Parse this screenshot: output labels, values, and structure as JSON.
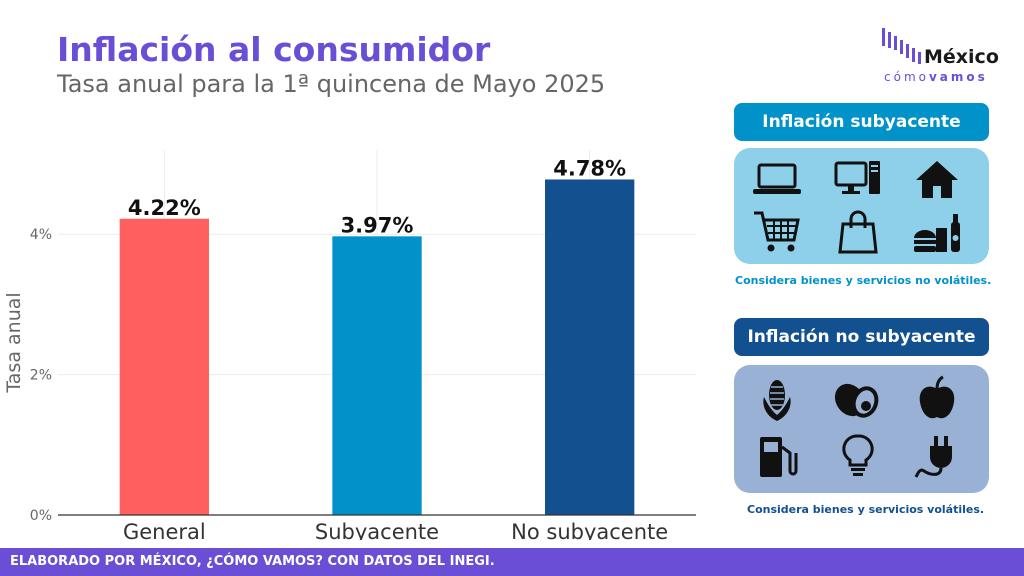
{
  "header": {
    "title": "Inflación al consumidor",
    "subtitle": "Tasa anual para la 1ª quincena de Mayo 2025"
  },
  "logo": {
    "word": "México",
    "tagline_light": "cómo",
    "tagline_bold": "vamos"
  },
  "chart_data": {
    "type": "bar",
    "categories": [
      "General",
      "Subyacente",
      "No subyacente"
    ],
    "values": [
      4.22,
      3.97,
      4.78
    ],
    "value_labels": [
      "4.22%",
      "3.97%",
      "4.78%"
    ],
    "colors": [
      "#ff5f5f",
      "#0092c8",
      "#12508f"
    ],
    "ylabel": "Tasa anual",
    "ylim": [
      0,
      5.2
    ],
    "yticks": [
      0,
      2,
      4
    ],
    "ytick_labels": [
      "0%",
      "2%",
      "4%"
    ],
    "grid": true
  },
  "panels": {
    "core": {
      "title": "Inflación subyacente",
      "note": "Considera bienes y servicios no volátiles.",
      "accent": "#0092c8",
      "box_color": "#8ed0ea",
      "icons": [
        "laptop-icon",
        "desktop-computer-icon",
        "house-icon",
        "shopping-cart-icon",
        "shopping-bag-icon",
        "food-and-drinks-icon"
      ]
    },
    "noncore": {
      "title": "Inflación no subyacente",
      "note": "Considera bienes y servicios volátiles.",
      "accent": "#12508f",
      "box_color": "#98b1d4",
      "icons": [
        "corn-icon",
        "avocado-icon",
        "apple-icon",
        "fuel-pump-icon",
        "light-bulb-icon",
        "electric-plug-icon"
      ]
    }
  },
  "footer": {
    "text": "ELABORADO POR MÉXICO, ¿CÓMO VAMOS? CON DATOS DEL INEGI."
  }
}
